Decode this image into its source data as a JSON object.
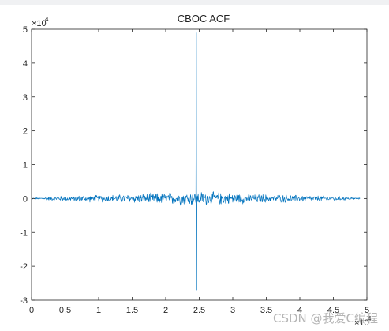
{
  "chart_data": {
    "type": "line",
    "title": "CBOC ACF",
    "xlabel": "",
    "ylabel": "",
    "xlim": [
      0,
      50000
    ],
    "ylim": [
      -30000,
      50000
    ],
    "x_ticks": [
      0,
      5000,
      10000,
      15000,
      20000,
      25000,
      30000,
      35000,
      40000,
      45000,
      50000
    ],
    "x_tick_labels": [
      "0",
      "0.5",
      "1",
      "1.5",
      "2",
      "2.5",
      "3",
      "3.5",
      "4",
      "4.5",
      "5"
    ],
    "y_ticks": [
      -30000,
      -20000,
      -10000,
      0,
      10000,
      20000,
      30000,
      40000,
      50000
    ],
    "y_tick_labels": [
      "-3",
      "-2",
      "-1",
      "0",
      "1",
      "2",
      "3",
      "4",
      "5"
    ],
    "x_exponent": {
      "base": "×10",
      "power": "4"
    },
    "y_exponent": {
      "base": "×10",
      "power": "4"
    },
    "grid": false,
    "line_color": "#0072bd",
    "series": [
      {
        "points": [
          {
            "x": 0,
            "y": 0
          },
          {
            "x": 24500,
            "y": 0
          },
          {
            "x": 24550,
            "y": 49000
          },
          {
            "x": 24600,
            "y": -27000
          },
          {
            "x": 24650,
            "y": 0
          },
          {
            "x": 49000,
            "y": 0
          }
        ],
        "envelope": [
          {
            "x": 0,
            "amp": 200
          },
          {
            "x": 5000,
            "amp": 1000
          },
          {
            "x": 10000,
            "amp": 1200
          },
          {
            "x": 15000,
            "amp": 1500
          },
          {
            "x": 20000,
            "amp": 2000
          },
          {
            "x": 24500,
            "amp": 2500
          },
          {
            "x": 30000,
            "amp": 1900
          },
          {
            "x": 35000,
            "amp": 1500
          },
          {
            "x": 40000,
            "amp": 1200
          },
          {
            "x": 45000,
            "amp": 900
          },
          {
            "x": 49000,
            "amp": 200
          }
        ]
      }
    ]
  },
  "watermark": "CSDN @我爱C编程"
}
